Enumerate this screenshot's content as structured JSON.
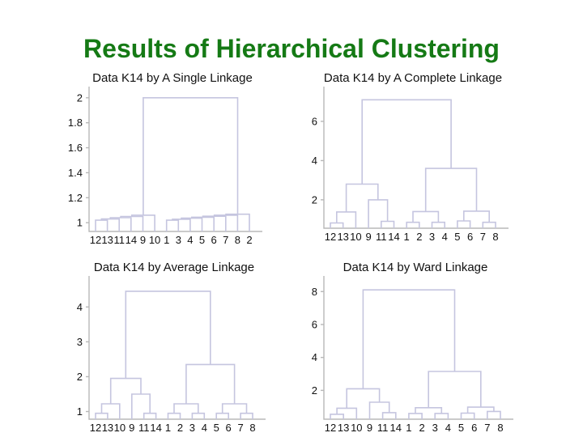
{
  "slide": {
    "title": "Results of Hierarchical Clustering",
    "title_color": "#157a15",
    "background": "#ffffff"
  },
  "styles": {
    "line_color": "#c5c5df",
    "axis_color": "#b8b8b8",
    "text_color": "#111111",
    "title_font_size": 15,
    "tick_font_size": 13,
    "leaf_font_size": 13
  },
  "chart_data": [
    {
      "type": "dendrogram",
      "title": "Data K14 by A Single Linkage",
      "leaves": [
        "12",
        "13",
        "11",
        "14",
        "9",
        "10",
        "1",
        "3",
        "4",
        "5",
        "6",
        "7",
        "8",
        "2"
      ],
      "yticks": {
        "values": [
          1,
          1.2,
          1.4,
          1.6,
          1.8,
          2
        ],
        "labels": [
          "1",
          "1.2",
          "1.4",
          "1.6",
          "1.8",
          "2"
        ]
      },
      "ylim": [
        0.93,
        2.07
      ],
      "merges": [
        [
          "L0",
          "L1",
          1.02
        ],
        [
          "M0",
          "L2",
          1.03
        ],
        [
          "M1",
          "L3",
          1.04
        ],
        [
          "M2",
          "L4",
          1.05
        ],
        [
          "M3",
          "L5",
          1.06
        ],
        [
          "L6",
          "L7",
          1.02
        ],
        [
          "M5",
          "L8",
          1.028
        ],
        [
          "M6",
          "L9",
          1.036
        ],
        [
          "M7",
          "L10",
          1.044
        ],
        [
          "M8",
          "L11",
          1.052
        ],
        [
          "M9",
          "L12",
          1.06
        ],
        [
          "M10",
          "L13",
          1.068
        ],
        [
          "M4",
          "M11",
          2.0
        ]
      ]
    },
    {
      "type": "dendrogram",
      "title": "Data K14 by A Complete Linkage",
      "leaves": [
        "12",
        "13",
        "10",
        "9",
        "11",
        "14",
        "1",
        "2",
        "3",
        "4",
        "5",
        "6",
        "7",
        "8"
      ],
      "yticks": {
        "values": [
          2,
          4,
          6
        ],
        "labels": [
          "2",
          "4",
          "6"
        ]
      },
      "ylim": [
        0.55,
        7.65
      ],
      "merges": [
        [
          "L0",
          "L1",
          0.82
        ],
        [
          "M0",
          "L2",
          1.38
        ],
        [
          "L4",
          "L5",
          0.9
        ],
        [
          "L3",
          "M2",
          2.0
        ],
        [
          "M1",
          "M3",
          2.8
        ],
        [
          "L6",
          "L7",
          0.85
        ],
        [
          "L8",
          "L9",
          0.85
        ],
        [
          "M5",
          "M6",
          1.4
        ],
        [
          "L10",
          "L11",
          0.92
        ],
        [
          "L12",
          "L13",
          0.85
        ],
        [
          "M8",
          "M9",
          1.42
        ],
        [
          "M7",
          "M10",
          3.6
        ],
        [
          "M4",
          "M11",
          7.1
        ]
      ]
    },
    {
      "type": "dendrogram",
      "title": "Data K14 by Average Linkage",
      "leaves": [
        "12",
        "13",
        "10",
        "9",
        "11",
        "14",
        "1",
        "2",
        "3",
        "4",
        "5",
        "6",
        "7",
        "8"
      ],
      "yticks": {
        "values": [
          1,
          2,
          3,
          4
        ],
        "labels": [
          "1",
          "2",
          "3",
          "4"
        ]
      },
      "ylim": [
        0.78,
        4.82
      ],
      "merges": [
        [
          "L0",
          "L1",
          0.95
        ],
        [
          "M0",
          "L2",
          1.22
        ],
        [
          "L4",
          "L5",
          0.95
        ],
        [
          "L3",
          "M2",
          1.5
        ],
        [
          "M1",
          "M3",
          1.95
        ],
        [
          "L6",
          "L7",
          0.95
        ],
        [
          "L8",
          "L9",
          0.95
        ],
        [
          "M5",
          "M6",
          1.22
        ],
        [
          "L10",
          "L11",
          0.95
        ],
        [
          "L12",
          "L13",
          0.95
        ],
        [
          "M8",
          "M9",
          1.22
        ],
        [
          "M7",
          "M10",
          2.35
        ],
        [
          "M4",
          "M11",
          4.45
        ]
      ]
    },
    {
      "type": "dendrogram",
      "title": "Data K14 by Ward Linkage",
      "leaves": [
        "12",
        "13",
        "10",
        "9",
        "11",
        "14",
        "1",
        "2",
        "3",
        "4",
        "5",
        "6",
        "7",
        "8"
      ],
      "yticks": {
        "values": [
          2,
          4,
          6,
          8
        ],
        "labels": [
          "2",
          "4",
          "6",
          "8"
        ]
      },
      "ylim": [
        0.25,
        8.8
      ],
      "merges": [
        [
          "L0",
          "L1",
          0.55
        ],
        [
          "M0",
          "L2",
          0.92
        ],
        [
          "L4",
          "L5",
          0.65
        ],
        [
          "L3",
          "M2",
          1.28
        ],
        [
          "M1",
          "M3",
          2.1
        ],
        [
          "L6",
          "L7",
          0.6
        ],
        [
          "L8",
          "L9",
          0.6
        ],
        [
          "M5",
          "M6",
          0.95
        ],
        [
          "L10",
          "L11",
          0.62
        ],
        [
          "L12",
          "L13",
          0.72
        ],
        [
          "M8",
          "M9",
          0.98
        ],
        [
          "M7",
          "M10",
          3.15
        ],
        [
          "M4",
          "M11",
          8.1
        ]
      ]
    }
  ]
}
